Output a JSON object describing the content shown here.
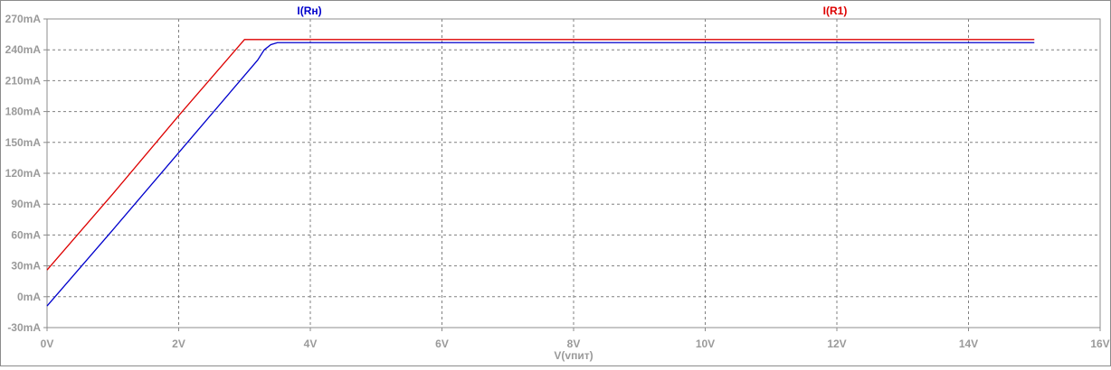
{
  "chart_data": {
    "type": "line",
    "xlabel": "V(vпит)",
    "xlim": [
      0,
      16
    ],
    "ylim": [
      -30,
      270
    ],
    "x_ticks": [
      0,
      2,
      4,
      6,
      8,
      10,
      12,
      14,
      16
    ],
    "x_tick_labels": [
      "0V",
      "2V",
      "4V",
      "6V",
      "8V",
      "10V",
      "12V",
      "14V",
      "16V"
    ],
    "y_ticks": [
      -30,
      0,
      30,
      60,
      90,
      120,
      150,
      180,
      210,
      240,
      270
    ],
    "y_tick_labels": [
      "-30mA",
      "0mA",
      "30mA",
      "60mA",
      "90mA",
      "120mA",
      "150mA",
      "180mA",
      "210mA",
      "240mA",
      "270mA"
    ],
    "grid": true,
    "legend_placement": "top",
    "series": [
      {
        "name": "I(Rн)",
        "color": "#0000cc",
        "x": [
          0,
          1,
          2,
          3,
          3.2,
          3.3,
          3.4,
          3.5,
          15
        ],
        "y": [
          -9,
          65,
          140,
          215,
          230,
          240,
          245,
          247,
          247
        ]
      },
      {
        "name": "I(R1)",
        "color": "#dd0000",
        "x": [
          0,
          1,
          2,
          3,
          15
        ],
        "y": [
          26,
          100,
          176,
          250,
          250
        ]
      }
    ]
  }
}
